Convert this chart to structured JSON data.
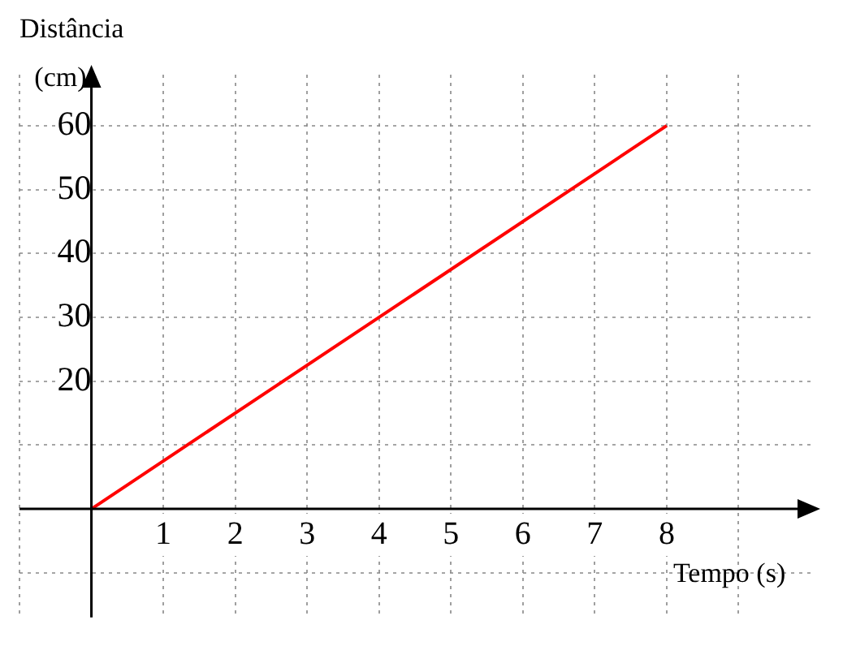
{
  "chart_data": {
    "type": "line",
    "xlabel": "Tempo (s)",
    "ylabel": "Distância (cm)",
    "x": [
      0,
      8
    ],
    "series": [
      {
        "color": "#ff0000",
        "values": [
          0,
          60
        ]
      }
    ],
    "xlim": [
      -1,
      10
    ],
    "ylim": [
      -17,
      68
    ],
    "xticks": [
      {
        "value": -1,
        "label": null
      },
      {
        "value": 0,
        "label": null
      },
      1,
      2,
      3,
      4,
      5,
      6,
      7,
      8,
      {
        "value": 9,
        "label": null
      }
    ],
    "yticks": [
      {
        "value": -10,
        "label": null
      },
      {
        "value": 0,
        "label": null
      },
      {
        "value": 10,
        "label": null
      },
      20,
      30,
      40,
      50,
      60
    ],
    "grid": true,
    "line_style": "solid",
    "marker": "none"
  }
}
